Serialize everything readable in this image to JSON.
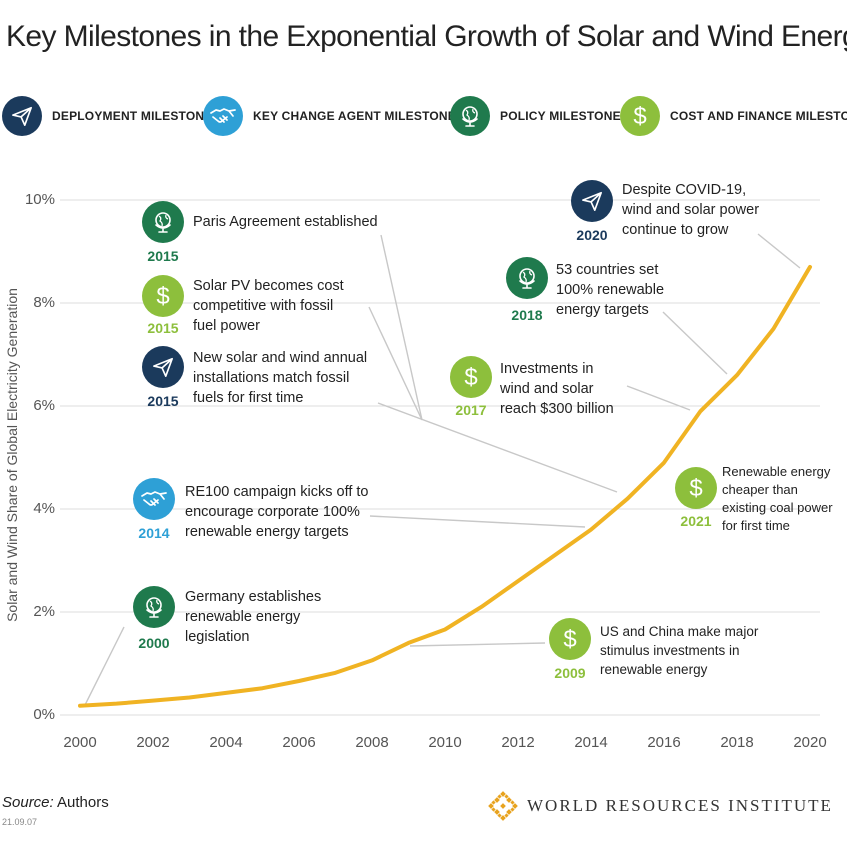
{
  "title": "Key Milestones in the Exponential Growth of Solar and Wind Energy",
  "colors": {
    "deployment": "#1b3a5c",
    "change_agent": "#2ea0d6",
    "policy": "#1f7a4d",
    "finance": "#8dbf3c",
    "line": "#f0b323",
    "grid": "#dddddd",
    "leader": "#c8c8c8"
  },
  "legend": [
    {
      "key": "deployment",
      "label": "DEPLOYMENT MILESTONE",
      "icon": "paper-plane-icon"
    },
    {
      "key": "change_agent",
      "label": "KEY CHANGE AGENT MILESTONE",
      "icon": "handshake-icon"
    },
    {
      "key": "policy",
      "label": "POLICY MILESTONE",
      "icon": "globe-icon"
    },
    {
      "key": "finance",
      "label": "COST AND FINANCE MILESTONE",
      "icon": "dollar-icon"
    }
  ],
  "chart_data": {
    "type": "line",
    "title": "Key Milestones in the Exponential Growth of Solar and Wind Energy",
    "ylabel": "Solar and Wind Share of Global Electricity Generation",
    "xlabel": "",
    "x_ticks": [
      "2000",
      "2002",
      "2004",
      "2006",
      "2008",
      "2010",
      "2012",
      "2014",
      "2016",
      "2018",
      "2020"
    ],
    "y_ticks": [
      "0%",
      "2%",
      "4%",
      "6%",
      "8%",
      "10%"
    ],
    "xlim": [
      2000,
      2020
    ],
    "ylim": [
      0,
      10
    ],
    "grid": true,
    "series": [
      {
        "x": [
          2000,
          2001,
          2002,
          2003,
          2004,
          2005,
          2006,
          2007,
          2008,
          2009,
          2010,
          2011,
          2012,
          2013,
          2014,
          2015,
          2016,
          2017,
          2018,
          2019,
          2020
        ],
        "values": [
          0.18,
          0.22,
          0.28,
          0.34,
          0.43,
          0.52,
          0.66,
          0.82,
          1.06,
          1.4,
          1.66,
          2.1,
          2.6,
          3.1,
          3.6,
          4.2,
          4.9,
          5.9,
          6.6,
          7.5,
          8.7
        ]
      }
    ]
  },
  "milestones": [
    {
      "year": "2015",
      "category": "policy",
      "icon": "globe-icon",
      "lines": [
        "Paris Agreement established"
      ]
    },
    {
      "year": "2015",
      "category": "finance",
      "icon": "dollar-icon",
      "lines": [
        "Solar PV becomes cost",
        "competitive with fossil",
        "fuel power"
      ]
    },
    {
      "year": "2015",
      "category": "deployment",
      "icon": "paper-plane-icon",
      "lines": [
        "New solar and wind annual",
        "installations match fossil",
        "fuels for first time"
      ]
    },
    {
      "year": "2014",
      "category": "change_agent",
      "icon": "handshake-icon",
      "lines": [
        "RE100 campaign kicks off to",
        "encourage corporate 100%",
        "renewable energy targets"
      ]
    },
    {
      "year": "2000",
      "category": "policy",
      "icon": "globe-icon",
      "lines": [
        "Germany establishes",
        "renewable energy",
        "legislation"
      ]
    },
    {
      "year": "2020",
      "category": "deployment",
      "icon": "paper-plane-icon",
      "lines": [
        "Despite COVID-19,",
        "wind and solar power",
        "continue to grow"
      ]
    },
    {
      "year": "2018",
      "category": "policy",
      "icon": "globe-icon",
      "lines": [
        "53 countries set",
        "100% renewable",
        "energy targets"
      ]
    },
    {
      "year": "2017",
      "category": "finance",
      "icon": "dollar-icon",
      "lines": [
        "Investments in",
        "wind and solar",
        "reach $300 billion"
      ]
    },
    {
      "year": "2021",
      "category": "finance",
      "icon": "dollar-icon",
      "lines": [
        "Renewable energy",
        "cheaper than",
        "existing coal power",
        "for first time"
      ]
    },
    {
      "year": "2009",
      "category": "finance",
      "icon": "dollar-icon",
      "lines": [
        "US and China make major",
        "stimulus investments in",
        "renewable energy"
      ]
    }
  ],
  "source": {
    "label": "Source:",
    "value": " Authors"
  },
  "code": "21.09.07",
  "organization": "WORLD RESOURCES INSTITUTE"
}
